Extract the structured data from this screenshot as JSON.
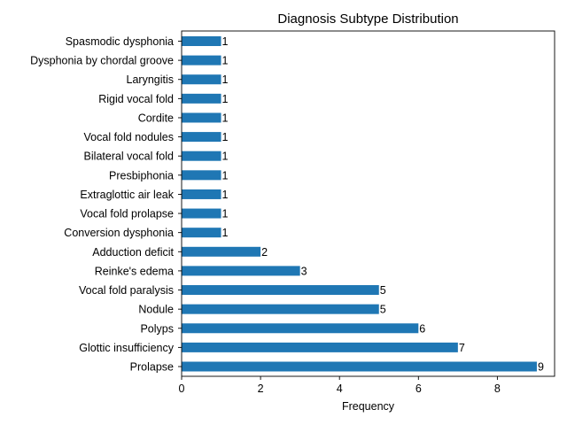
{
  "chart_data": {
    "type": "bar",
    "orientation": "horizontal",
    "title": "Diagnosis Subtype Distribution",
    "xlabel": "Frequency",
    "ylabel": "",
    "categories": [
      "Spasmodic dysphonia",
      "Dysphonia by chordal groove",
      "Laryngitis",
      "Rigid vocal fold",
      "Cordite",
      "Vocal fold nodules",
      "Bilateral vocal fold",
      "Presbiphonia",
      "Extraglottic air leak",
      "Vocal fold prolapse",
      "Conversion dysphonia",
      "Adduction deficit",
      "Reinke's edema",
      "Vocal fold paralysis",
      "Nodule",
      "Polyps",
      "Glottic insufficiency",
      "Prolapse"
    ],
    "values": [
      1,
      1,
      1,
      1,
      1,
      1,
      1,
      1,
      1,
      1,
      1,
      2,
      3,
      5,
      5,
      6,
      7,
      9
    ],
    "xlim": [
      0,
      9.45
    ],
    "xticks": [
      0,
      2,
      4,
      6,
      8
    ],
    "bar_color": "#1f77b4",
    "data_labels": true,
    "grid": false,
    "legend": false
  }
}
